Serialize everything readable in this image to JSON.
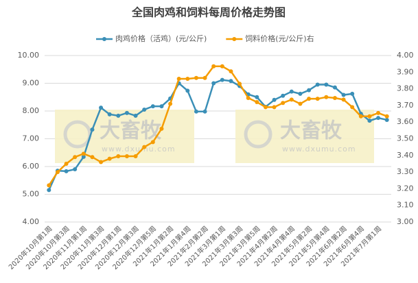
{
  "chart_data": {
    "type": "line",
    "title": "全国肉鸡和饲料每周价格走势图",
    "watermark": {
      "logo": "大畜牧",
      "url": "www.dxumu.com"
    },
    "categories": [
      "2020年10月第1周",
      null,
      "2020年10月第3周",
      null,
      "2020年11月第1周",
      null,
      "2020年11月第3周",
      null,
      "2020年12月第1周",
      null,
      "2020年12月第3周",
      null,
      "2020年12月第5周",
      null,
      "2021年1月第2周",
      null,
      "2021年1月第4周",
      null,
      "2021年2月第2周",
      null,
      "2021年3月第1周",
      null,
      "2021年3月第3周",
      null,
      "2021年3月第5周",
      null,
      "2021年4月第2周",
      null,
      "2021年4月第4周",
      null,
      "2021年5月第2周",
      null,
      "2021年5月第4周",
      null,
      "2021年6月第2周",
      null,
      "2021年6月第4周",
      null,
      "2021年7月第1周",
      null
    ],
    "series": [
      {
        "name": "肉鸡价格（活鸡）(元/公斤)",
        "color": "#3a8fb7",
        "values": [
          5.15,
          5.85,
          5.83,
          5.9,
          6.35,
          7.33,
          8.12,
          7.88,
          7.83,
          7.93,
          7.83,
          8.05,
          8.17,
          8.17,
          8.45,
          9.0,
          8.73,
          7.98,
          7.98,
          9.0,
          9.12,
          9.08,
          8.9,
          8.6,
          8.5,
          8.15,
          8.4,
          8.55,
          8.7,
          8.62,
          8.75,
          8.95,
          8.95,
          8.85,
          8.58,
          8.62,
          7.9,
          7.65,
          7.75,
          7.68
        ]
      },
      {
        "name": "饲料价格(元/公斤)右",
        "color": "#f59c00",
        "axis": "y2",
        "values": [
          3.22,
          3.3,
          3.35,
          3.39,
          3.41,
          3.39,
          3.36,
          3.38,
          3.395,
          3.395,
          3.395,
          3.45,
          3.48,
          3.56,
          3.71,
          3.86,
          3.86,
          3.865,
          3.865,
          3.935,
          3.935,
          3.905,
          3.83,
          3.745,
          3.72,
          3.69,
          3.69,
          3.715,
          3.735,
          3.71,
          3.74,
          3.74,
          3.75,
          3.745,
          3.735,
          3.69,
          3.635,
          3.635,
          3.655,
          3.635
        ]
      }
    ],
    "ylim": [
      4,
      10
    ],
    "yticks": [
      {
        "value": 4,
        "label": "4.00"
      },
      {
        "value": 5,
        "label": "5.00"
      },
      {
        "value": 6,
        "label": "6.00"
      },
      {
        "value": 7,
        "label": "7.00"
      },
      {
        "value": 8,
        "label": "8.00"
      },
      {
        "value": 9,
        "label": "9.00"
      },
      {
        "value": 10,
        "label": "10.00"
      }
    ],
    "y2lim": [
      3,
      4
    ],
    "y2ticks": [
      {
        "value": 3,
        "label": "3.00"
      },
      {
        "value": 3.1,
        "label": "3.10"
      },
      {
        "value": 3.2,
        "label": "3.20"
      },
      {
        "value": 3.3,
        "label": "3.30"
      },
      {
        "value": 3.4,
        "label": "3.40"
      },
      {
        "value": 3.5,
        "label": "3.50"
      },
      {
        "value": 3.6,
        "label": "3.60"
      },
      {
        "value": 3.7,
        "label": "3.70"
      },
      {
        "value": 3.8,
        "label": "3.80"
      },
      {
        "value": 3.9,
        "label": "3.90"
      },
      {
        "value": 4,
        "label": "4.00"
      }
    ],
    "grid": true
  }
}
